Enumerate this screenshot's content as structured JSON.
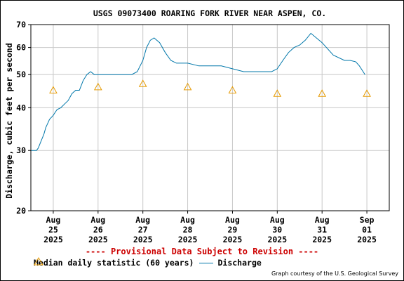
{
  "colors": {
    "discharge": "#0077aa",
    "median": "#e69a00",
    "provisional": "#cc0000",
    "grid": "#c8c8c8"
  },
  "chart_data": {
    "type": "line",
    "title": "USGS 09073400 ROARING FORK RIVER NEAR ASPEN, CO.",
    "ylabel": "Discharge, cubic feet per second",
    "xlabel": "",
    "y_scale": "log",
    "ylim": [
      20,
      70
    ],
    "y_ticks": [
      20,
      30,
      40,
      50,
      60,
      70
    ],
    "y_tick_labels": [
      "20",
      "30",
      "40",
      "50",
      "60",
      "70"
    ],
    "xlim": [
      "2025-08-24T12:00",
      "2025-09-01T12:00"
    ],
    "x_ticks": [
      {
        "t": "2025-08-25",
        "label": [
          "Aug",
          "25",
          "2025"
        ]
      },
      {
        "t": "2025-08-26",
        "label": [
          "Aug",
          "26",
          "2025"
        ]
      },
      {
        "t": "2025-08-27",
        "label": [
          "Aug",
          "27",
          "2025"
        ]
      },
      {
        "t": "2025-08-28",
        "label": [
          "Aug",
          "28",
          "2025"
        ]
      },
      {
        "t": "2025-08-29",
        "label": [
          "Aug",
          "29",
          "2025"
        ]
      },
      {
        "t": "2025-08-30",
        "label": [
          "Aug",
          "30",
          "2025"
        ]
      },
      {
        "t": "2025-08-31",
        "label": [
          "Aug",
          "31",
          "2025"
        ]
      },
      {
        "t": "2025-09-01",
        "label": [
          "Sep",
          "01",
          "2025"
        ]
      }
    ],
    "grid": true,
    "legend_placement": "bottom",
    "series": [
      {
        "name": "Median daily statistic (60 years)",
        "marker": "triangle",
        "x": [
          "2025-08-25",
          "2025-08-26",
          "2025-08-27",
          "2025-08-28",
          "2025-08-29",
          "2025-08-30",
          "2025-08-31",
          "2025-09-01"
        ],
        "y": [
          45,
          46,
          47,
          46,
          45,
          44,
          44,
          44
        ]
      },
      {
        "name": "Discharge",
        "marker": "line",
        "x": [
          "2025-08-24T12:00",
          "2025-08-24T14:00",
          "2025-08-24T15:00",
          "2025-08-24T16:00",
          "2025-08-24T17:00",
          "2025-08-24T18:00",
          "2025-08-24T19:00",
          "2025-08-24T20:00",
          "2025-08-24T21:00",
          "2025-08-24T22:00",
          "2025-08-25T00:00",
          "2025-08-25T02:00",
          "2025-08-25T04:00",
          "2025-08-25T06:00",
          "2025-08-25T08:00",
          "2025-08-25T10:00",
          "2025-08-25T12:00",
          "2025-08-25T14:00",
          "2025-08-25T16:00",
          "2025-08-25T18:00",
          "2025-08-25T20:00",
          "2025-08-25T22:00",
          "2025-08-26T00:00",
          "2025-08-26T06:00",
          "2025-08-26T12:00",
          "2025-08-26T18:00",
          "2025-08-26T21:00",
          "2025-08-27T00:00",
          "2025-08-27T02:00",
          "2025-08-27T04:00",
          "2025-08-27T06:00",
          "2025-08-27T09:00",
          "2025-08-27T12:00",
          "2025-08-27T15:00",
          "2025-08-27T18:00",
          "2025-08-28T00:00",
          "2025-08-28T06:00",
          "2025-08-28T12:00",
          "2025-08-28T18:00",
          "2025-08-29T00:00",
          "2025-08-29T06:00",
          "2025-08-29T12:00",
          "2025-08-29T18:00",
          "2025-08-29T21:00",
          "2025-08-30T00:00",
          "2025-08-30T03:00",
          "2025-08-30T06:00",
          "2025-08-30T09:00",
          "2025-08-30T12:00",
          "2025-08-30T15:00",
          "2025-08-30T18:00",
          "2025-08-31T00:00",
          "2025-08-31T06:00",
          "2025-08-31T12:00",
          "2025-08-31T15:00",
          "2025-08-31T18:00",
          "2025-08-31T20:00",
          "2025-08-31T22:00",
          "2025-08-31T23:00"
        ],
        "y": [
          30,
          30,
          30,
          30.5,
          31.5,
          32.5,
          33.5,
          35,
          36,
          37,
          38,
          39.5,
          40,
          41,
          42,
          44,
          45,
          45,
          48,
          50,
          51,
          50,
          50,
          50,
          50,
          50,
          51,
          55,
          60,
          63,
          64,
          62,
          58,
          55,
          54,
          54,
          53,
          53,
          53,
          52,
          51,
          51,
          51,
          51,
          52,
          55,
          58,
          60,
          61,
          63,
          66,
          62,
          57,
          55,
          55,
          54.5,
          53,
          51,
          50
        ]
      }
    ]
  },
  "legend": {
    "median_label": "Median daily statistic (60 years)",
    "discharge_label": "Discharge"
  },
  "provisional_text": "---- Provisional Data Subject to Revision ----",
  "credit_text": "Graph courtesy of the U.S. Geological Survey"
}
